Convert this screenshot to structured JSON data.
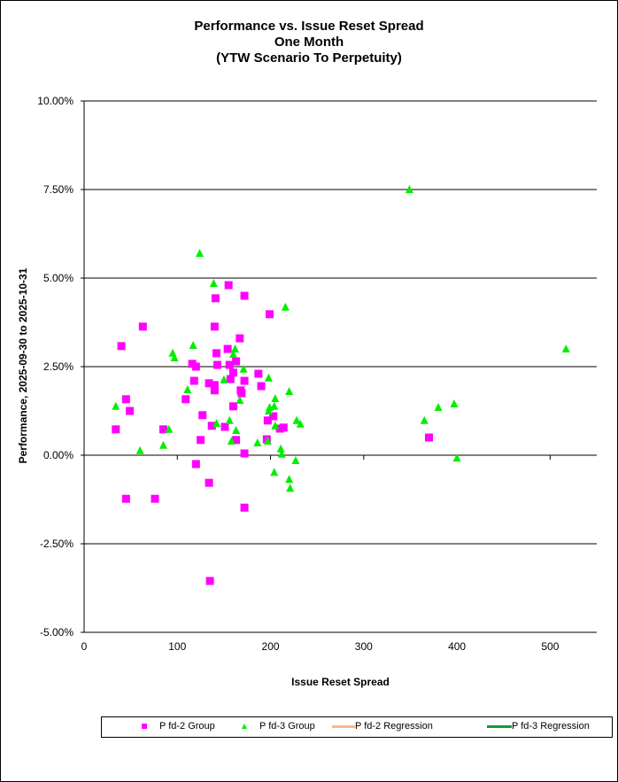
{
  "chart_data": {
    "type": "scatter",
    "title": [
      "Performance vs. Issue Reset Spread",
      "One Month",
      "(YTW Scenario To Perpetuity)"
    ],
    "xlabel": "Issue Reset Spread",
    "ylabel": "Performance, 2025-09-30  to 2025-10-31",
    "xlim": [
      0,
      550
    ],
    "ylim": [
      -5,
      10
    ],
    "x_ticks": [
      0,
      100,
      200,
      300,
      400,
      500
    ],
    "x_tick_labels": [
      "0",
      "100",
      "200",
      "300",
      "400",
      "500"
    ],
    "y_ticks": [
      -5,
      -2.5,
      0,
      2.5,
      5,
      7.5,
      10
    ],
    "y_tick_labels": [
      "-5.00%",
      "-2.50%",
      "0.00%",
      "2.50%",
      "5.00%",
      "7.50%",
      "10.00%"
    ],
    "grid": "horizontal",
    "legend_position": "bottom",
    "series": [
      {
        "name": "P fd-2 Group",
        "marker": "square",
        "color": "#ff00ff",
        "points": [
          [
            40,
            3.08
          ],
          [
            45,
            1.58
          ],
          [
            49,
            1.25
          ],
          [
            34,
            0.73
          ],
          [
            45,
            -1.23
          ],
          [
            63,
            3.63
          ],
          [
            76,
            -1.23
          ],
          [
            85,
            0.73
          ],
          [
            109,
            1.58
          ],
          [
            116,
            2.58
          ],
          [
            118,
            2.1
          ],
          [
            120,
            2.5
          ],
          [
            120,
            -0.25
          ],
          [
            125,
            0.43
          ],
          [
            127,
            1.13
          ],
          [
            134,
            2.03
          ],
          [
            134,
            -0.78
          ],
          [
            135,
            -3.55
          ],
          [
            137,
            0.83
          ],
          [
            140,
            1.98
          ],
          [
            140,
            1.83
          ],
          [
            141,
            4.43
          ],
          [
            140,
            3.63
          ],
          [
            142,
            2.88
          ],
          [
            143,
            2.55
          ],
          [
            151,
            0.8
          ],
          [
            154,
            3.0
          ],
          [
            155,
            4.8
          ],
          [
            156,
            2.55
          ],
          [
            160,
            1.38
          ],
          [
            157,
            2.15
          ],
          [
            160,
            2.33
          ],
          [
            163,
            2.65
          ],
          [
            163,
            0.43
          ],
          [
            167,
            3.3
          ],
          [
            168,
            1.83
          ],
          [
            169,
            1.75
          ],
          [
            172,
            4.5
          ],
          [
            172,
            2.1
          ],
          [
            172,
            0.05
          ],
          [
            172,
            -1.48
          ],
          [
            187,
            2.3
          ],
          [
            190,
            1.95
          ],
          [
            196,
            0.45
          ],
          [
            197,
            0.98
          ],
          [
            199,
            3.98
          ],
          [
            203,
            1.1
          ],
          [
            210,
            0.75
          ],
          [
            214,
            0.78
          ],
          [
            370,
            0.5
          ]
        ]
      },
      {
        "name": "P fd-3 Group",
        "marker": "triangle",
        "color": "#00ee00",
        "points": [
          [
            34,
            1.38
          ],
          [
            60,
            0.13
          ],
          [
            85,
            0.28
          ],
          [
            91,
            0.73
          ],
          [
            95,
            2.88
          ],
          [
            97,
            2.75
          ],
          [
            111,
            1.85
          ],
          [
            117,
            3.1
          ],
          [
            124,
            5.7
          ],
          [
            139,
            4.85
          ],
          [
            142,
            0.9
          ],
          [
            150,
            2.13
          ],
          [
            156,
            0.98
          ],
          [
            158,
            0.4
          ],
          [
            160,
            2.85
          ],
          [
            162,
            3.0
          ],
          [
            163,
            0.7
          ],
          [
            167,
            1.55
          ],
          [
            171,
            2.43
          ],
          [
            186,
            0.35
          ],
          [
            197,
            0.4
          ],
          [
            198,
            2.18
          ],
          [
            198,
            1.25
          ],
          [
            199,
            1.35
          ],
          [
            205,
            1.6
          ],
          [
            204,
            1.38
          ],
          [
            205,
            0.83
          ],
          [
            204,
            -0.48
          ],
          [
            211,
            0.18
          ],
          [
            212,
            0.03
          ],
          [
            216,
            4.18
          ],
          [
            220,
            1.8
          ],
          [
            220,
            -0.68
          ],
          [
            221,
            -0.93
          ],
          [
            227,
            -0.15
          ],
          [
            228,
            0.98
          ],
          [
            232,
            0.88
          ],
          [
            349,
            7.5
          ],
          [
            365,
            0.98
          ],
          [
            380,
            1.35
          ],
          [
            397,
            1.45
          ],
          [
            400,
            -0.08
          ],
          [
            517,
            3.0
          ]
        ]
      },
      {
        "name": "P fd-2 Regression",
        "marker": "line",
        "color": "#f8b88b",
        "points": []
      },
      {
        "name": "P fd-3 Regression",
        "marker": "line",
        "color": "#00a040",
        "points": []
      }
    ]
  }
}
